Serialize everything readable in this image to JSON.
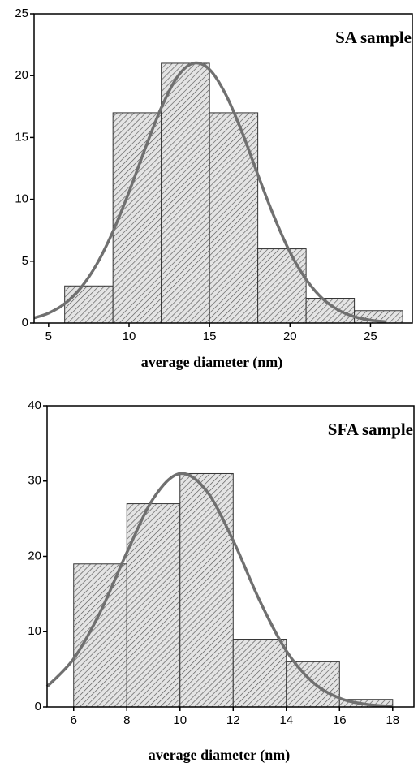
{
  "chart_data": [
    {
      "type": "histogram",
      "title": "SA sample",
      "xlabel": "average diameter (nm)",
      "bins": [
        6,
        9,
        12,
        15,
        18,
        21,
        24,
        27
      ],
      "values": [
        3,
        17,
        21,
        17,
        6,
        2,
        1
      ],
      "color": "#555555",
      "fit": {
        "color": "#707070",
        "x": [
          4.1,
          5,
          6,
          7,
          8,
          9,
          10,
          11,
          12,
          13,
          14,
          15,
          16,
          17,
          18,
          19,
          20,
          21,
          22,
          23,
          24,
          25,
          26
        ],
        "values": [
          0.41,
          0.8,
          1.56,
          2.84,
          4.77,
          7.4,
          10.6,
          14.1,
          17.4,
          19.9,
          21.0,
          20.5,
          18.5,
          15.5,
          12.0,
          8.63,
          5.72,
          3.53,
          2.0,
          1.05,
          0.51,
          0.23,
          0.1
        ]
      },
      "xlim": [
        4.1,
        27.6
      ],
      "ylim": [
        0,
        25
      ],
      "xticks": [
        5,
        10,
        15,
        20,
        25
      ],
      "yticks": [
        0,
        5,
        10,
        15,
        20,
        25
      ],
      "grid": false
    },
    {
      "type": "histogram",
      "title": "SFA sample",
      "xlabel": "average diameter (nm)",
      "bins": [
        6,
        8,
        10,
        12,
        14,
        16,
        18
      ],
      "values": [
        19,
        27,
        31,
        9,
        6,
        1
      ],
      "color": "#555555",
      "fit": {
        "color": "#707070",
        "x": [
          5,
          6,
          7,
          8,
          9,
          10,
          11,
          12,
          13,
          14,
          15,
          16,
          17,
          18
        ],
        "values": [
          2.7,
          6.4,
          12.6,
          20.5,
          27.7,
          31.0,
          28.7,
          22.1,
          14.1,
          7.45,
          3.27,
          1.18,
          0.35,
          0.09
        ]
      },
      "xlim": [
        5,
        18.8
      ],
      "ylim": [
        0,
        40
      ],
      "xticks": [
        6,
        8,
        10,
        12,
        14,
        16,
        18
      ],
      "yticks": [
        0,
        10,
        20,
        30,
        40
      ],
      "grid": false
    }
  ]
}
